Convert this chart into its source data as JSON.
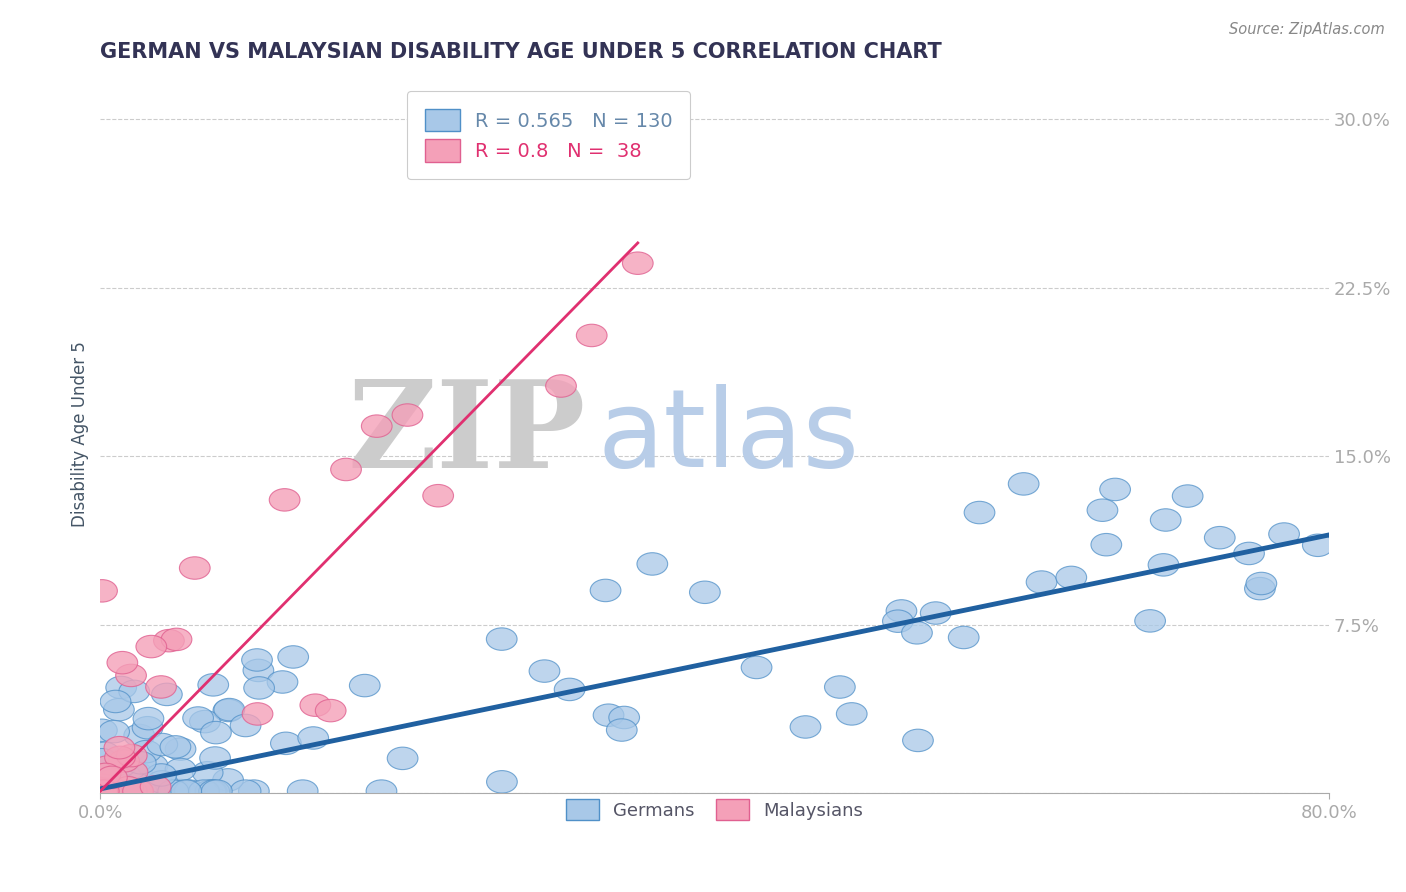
{
  "title": "GERMAN VS MALAYSIAN DISABILITY AGE UNDER 5 CORRELATION CHART",
  "source_text": "Source: ZipAtlas.com",
  "ylabel": "Disability Age Under 5",
  "xlim": [
    0.0,
    0.8
  ],
  "ylim": [
    0.0,
    0.32
  ],
  "yticks": [
    0.0,
    0.075,
    0.15,
    0.225,
    0.3
  ],
  "ytick_labels": [
    "",
    "7.5%",
    "15.0%",
    "22.5%",
    "30.0%"
  ],
  "blue_R": 0.565,
  "blue_N": 130,
  "pink_R": 0.8,
  "pink_N": 38,
  "blue_color": "#A8C8E8",
  "pink_color": "#F4A0B8",
  "blue_edge_color": "#5090C8",
  "pink_edge_color": "#E06090",
  "blue_line_color": "#2060A0",
  "pink_line_color": "#E03070",
  "watermark_ZIP_color": "#CCCCCC",
  "watermark_atlas_color": "#B8CDE8",
  "legend_label_blue": "Germans",
  "legend_label_pink": "Malaysians",
  "title_color": "#333355",
  "axis_label_color": "#445566",
  "tick_color": "#6688AA",
  "grid_color": "#CCCCCC",
  "blue_scatter_seed": 42,
  "pink_scatter_seed": 17,
  "blue_line_start_x": 0.0,
  "blue_line_end_x": 0.8,
  "blue_line_start_y": 0.002,
  "blue_line_end_y": 0.115,
  "pink_line_start_x": 0.0,
  "pink_line_end_x": 0.35,
  "pink_line_start_y": 0.001,
  "pink_line_end_y": 0.245
}
